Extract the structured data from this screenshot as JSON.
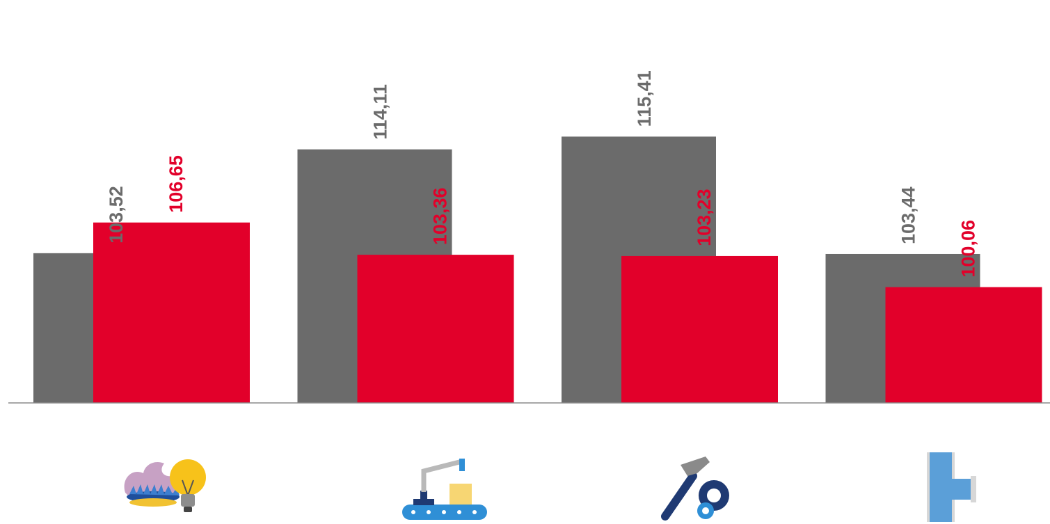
{
  "chart_data": {
    "type": "bar",
    "categories": [
      "",
      "",
      "",
      ""
    ],
    "series": [
      {
        "values": [
          103.52,
          114.11,
          115.41,
          103.44
        ],
        "labels": [
          "103,52",
          "114,11",
          "115,41",
          "103,44"
        ],
        "color": "#6b6b6b"
      },
      {
        "values": [
          106.65,
          103.36,
          103.23,
          100.06
        ],
        "labels": [
          "106,65",
          "103,36",
          "103,23",
          "100,06"
        ],
        "color": "#e2002a"
      }
    ],
    "ylim": [
      88.25,
      118.0
    ],
    "grid": false,
    "legend": "none",
    "category_icons": [
      "gas-flame-and-lightbulb-icon",
      "conveyor-robot-arm-icon",
      "hammer-and-gears-icon",
      "pipe-tee-icon"
    ]
  }
}
